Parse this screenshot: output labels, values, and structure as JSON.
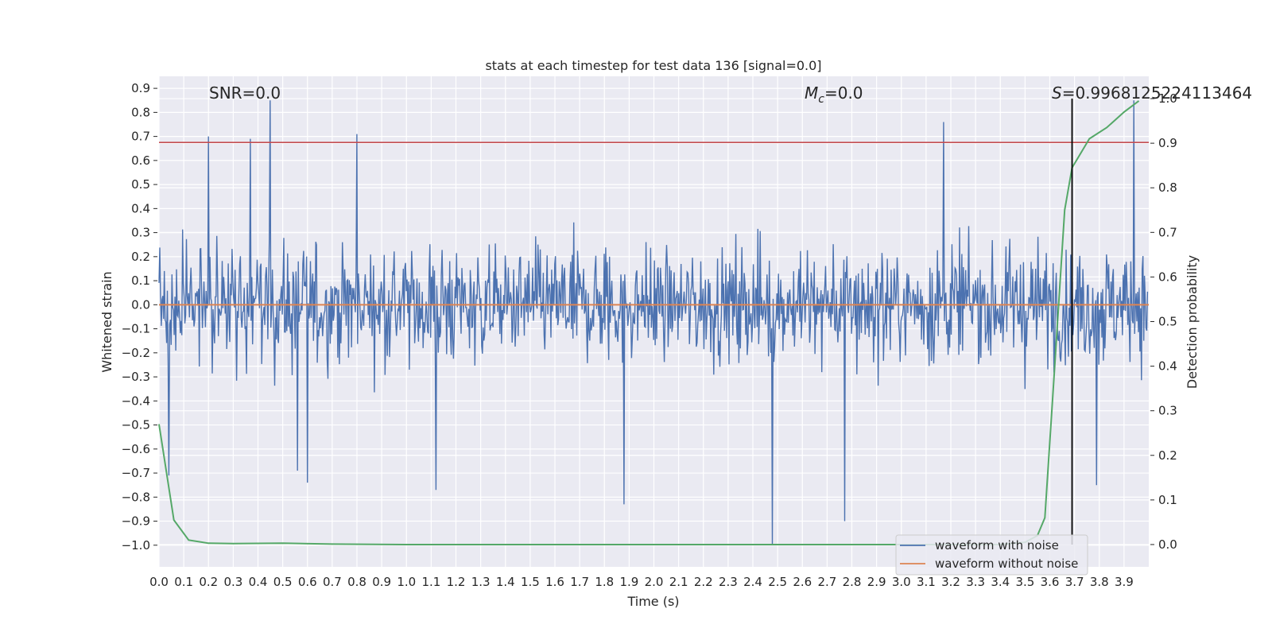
{
  "chart_data": {
    "type": "line",
    "title": "stats at each timestep for test data 136 [signal=0.0]",
    "xlabel": "Time (s)",
    "ylabel": "Whitened strain",
    "y2label": "Detection probability",
    "xlim": [
      0.0,
      4.0
    ],
    "ylim": [
      -1.09,
      0.95
    ],
    "y2lim": [
      -0.05,
      1.05
    ],
    "x_ticks": [
      "0.0",
      "0.1",
      "0.2",
      "0.3",
      "0.4",
      "0.5",
      "0.6",
      "0.7",
      "0.8",
      "0.9",
      "1.0",
      "1.1",
      "1.2",
      "1.3",
      "1.4",
      "1.5",
      "1.6",
      "1.7",
      "1.8",
      "1.9",
      "2.0",
      "2.1",
      "2.2",
      "2.3",
      "2.4",
      "2.5",
      "2.6",
      "2.7",
      "2.8",
      "2.9",
      "3.0",
      "3.1",
      "3.2",
      "3.3",
      "3.4",
      "3.5",
      "3.6",
      "3.7",
      "3.8",
      "3.9"
    ],
    "y_ticks": [
      "0.9",
      "0.8",
      "0.7",
      "0.6",
      "0.5",
      "0.4",
      "0.3",
      "0.2",
      "0.1",
      "0.0",
      "−0.1",
      "−0.2",
      "−0.3",
      "−0.4",
      "−0.5",
      "−0.6",
      "−0.7",
      "−0.8",
      "−0.9",
      "−1.0"
    ],
    "y2_ticks": [
      "0.0",
      "0.1",
      "0.2",
      "0.3",
      "0.4",
      "0.5",
      "0.6",
      "0.7",
      "0.8",
      "0.9",
      "1.0"
    ],
    "grid": true,
    "legend_position": "lower-right",
    "annotations": {
      "snr": "SNR=0.0",
      "mc_symbol": "M",
      "mc_sub": "c",
      "mc_value": "=0.0",
      "s_symbol": "S",
      "s_value": "=0.9968125224113464"
    },
    "threshold_y": 0.675,
    "detection_time": 3.69,
    "noise_envelope": {
      "typical_amplitude": 0.4,
      "spikes": [
        {
          "x": 0.04,
          "y": -0.71
        },
        {
          "x": 0.2,
          "y": 0.7
        },
        {
          "x": 0.37,
          "y": 0.69
        },
        {
          "x": 0.45,
          "y": 0.85
        },
        {
          "x": 0.56,
          "y": -0.69
        },
        {
          "x": 0.6,
          "y": -0.74
        },
        {
          "x": 0.8,
          "y": 0.71
        },
        {
          "x": 1.12,
          "y": -0.77
        },
        {
          "x": 1.88,
          "y": -0.83
        },
        {
          "x": 2.48,
          "y": -1.0
        },
        {
          "x": 2.77,
          "y": -0.9
        },
        {
          "x": 3.17,
          "y": 0.76
        },
        {
          "x": 3.79,
          "y": -0.75
        },
        {
          "x": 3.94,
          "y": 0.85
        }
      ]
    },
    "series": [
      {
        "name": "waveform with noise",
        "color": "#4c72b0"
      },
      {
        "name": "waveform without noise",
        "color": "#dd8452",
        "y": 0.0
      },
      {
        "color": "#55a868",
        "axis": "right",
        "x": [
          0.0,
          0.06,
          0.12,
          0.2,
          0.3,
          0.5,
          0.7,
          1.0,
          2.0,
          3.0,
          3.4,
          3.5,
          3.55,
          3.58,
          3.62,
          3.66,
          3.69,
          3.76,
          3.83,
          3.9,
          3.96
        ],
        "y": [
          0.27,
          0.055,
          0.01,
          0.003,
          0.002,
          0.003,
          0.001,
          0.0,
          0.0,
          0.0,
          0.0,
          0.005,
          0.02,
          0.06,
          0.4,
          0.75,
          0.845,
          0.91,
          0.935,
          0.97,
          0.995
        ]
      },
      {
        "color": "#c44e52",
        "role": "threshold"
      }
    ]
  }
}
